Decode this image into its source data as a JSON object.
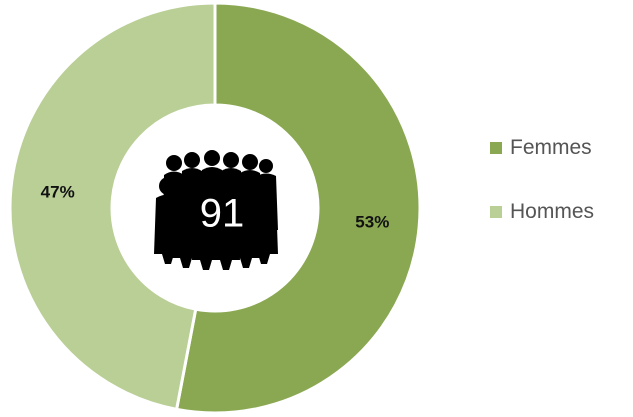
{
  "chart_data": {
    "type": "pie",
    "categories": [
      "Femmes",
      "Hommes"
    ],
    "values": [
      53,
      47
    ],
    "data_labels": [
      "53%",
      "47%"
    ],
    "colors": [
      "#8aa852",
      "#b9cf96"
    ],
    "center_value": "91",
    "center_icon": "people-group-silhouette-icon",
    "donut": true,
    "legend_position": "right"
  }
}
